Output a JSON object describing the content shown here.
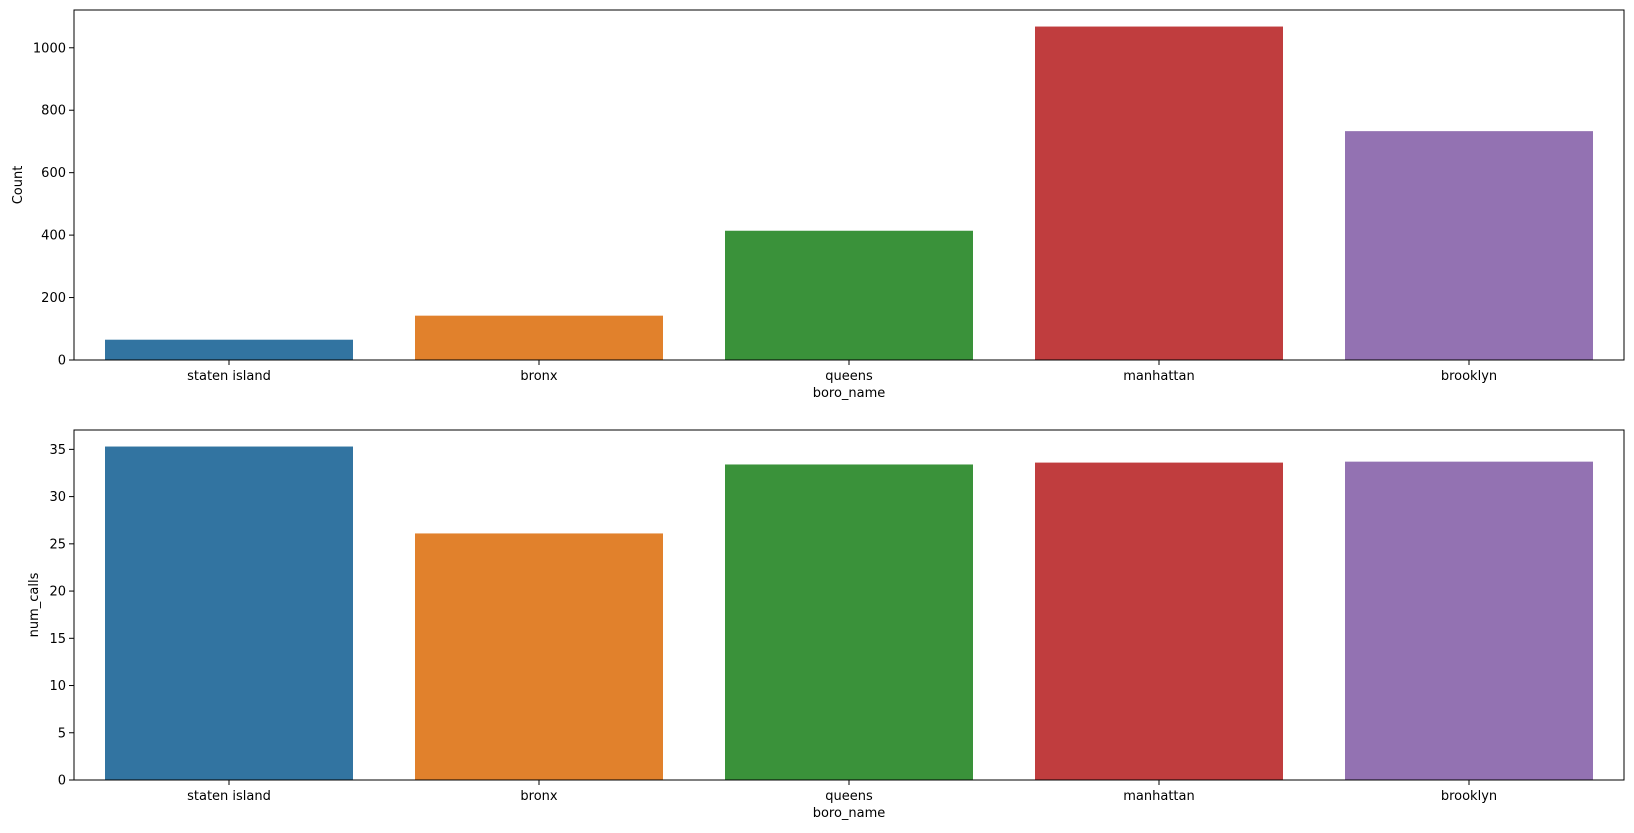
{
  "chart_data": [
    {
      "type": "bar",
      "categories": [
        "staten island",
        "bronx",
        "queens",
        "manhattan",
        "brooklyn"
      ],
      "values": [
        65,
        142,
        414,
        1068,
        733
      ],
      "colors": [
        "#3274a1",
        "#e1812c",
        "#3a923a",
        "#c03d3e",
        "#9372b2"
      ],
      "xlabel": "boro_name",
      "ylabel": "Count",
      "ylim": [
        0,
        1121
      ],
      "yticks": [
        0,
        200,
        400,
        600,
        800,
        1000
      ],
      "grid": false
    },
    {
      "type": "bar",
      "categories": [
        "staten island",
        "bronx",
        "queens",
        "manhattan",
        "brooklyn"
      ],
      "values": [
        35.3,
        26.1,
        33.4,
        33.6,
        33.7
      ],
      "colors": [
        "#3274a1",
        "#e1812c",
        "#3a923a",
        "#c03d3e",
        "#9372b2"
      ],
      "xlabel": "boro_name",
      "ylabel": "num_calls",
      "ylim": [
        0,
        37.05
      ],
      "yticks": [
        0,
        5,
        10,
        15,
        20,
        25,
        30,
        35
      ],
      "grid": false
    }
  ]
}
